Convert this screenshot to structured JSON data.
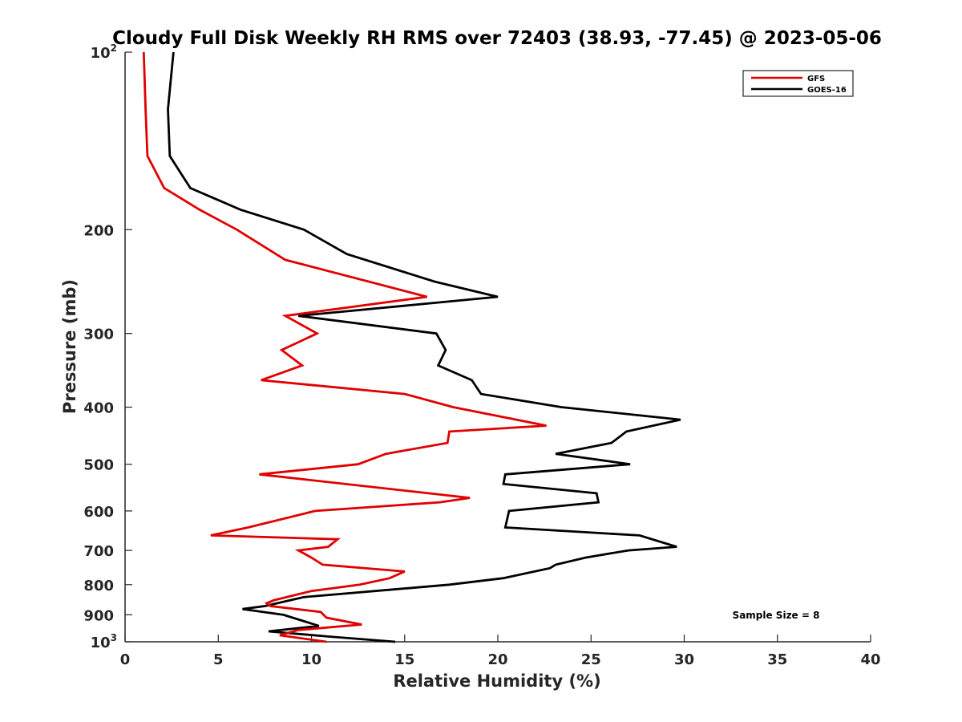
{
  "chart_data": {
    "type": "line",
    "title": "Cloudy Full Disk Weekly RH RMS over 72403 (38.93, -77.45) @ 2023-05-06",
    "xlabel": "Relative Humidity (%)",
    "ylabel": "Pressure (mb)",
    "xlim": [
      0,
      40
    ],
    "ylim": [
      100,
      1000
    ],
    "yscale": "log",
    "yreversed": true,
    "xticks": [
      0,
      5,
      10,
      15,
      20,
      25,
      30,
      35,
      40
    ],
    "yticks": [
      {
        "value": 100,
        "base": "10",
        "exp": "2"
      },
      {
        "value": 200,
        "label": "200"
      },
      {
        "value": 300,
        "label": "300"
      },
      {
        "value": 400,
        "label": "400"
      },
      {
        "value": 500,
        "label": "500"
      },
      {
        "value": 600,
        "label": "600"
      },
      {
        "value": 700,
        "label": "700"
      },
      {
        "value": 800,
        "label": "800"
      },
      {
        "value": 900,
        "label": "900"
      },
      {
        "value": 1000,
        "base": "10",
        "exp": "3"
      }
    ],
    "grid": false,
    "legend_position": "top-right",
    "annotation": "Sample Size = 8",
    "series": [
      {
        "name": "GFS",
        "color": "#e00000",
        "points": [
          [
            1.0,
            100
          ],
          [
            1.1,
            125
          ],
          [
            1.2,
            150
          ],
          [
            2.1,
            170
          ],
          [
            4.0,
            185
          ],
          [
            6.0,
            200
          ],
          [
            8.6,
            225
          ],
          [
            16.2,
            260
          ],
          [
            8.6,
            280
          ],
          [
            10.3,
            300
          ],
          [
            8.4,
            320
          ],
          [
            9.5,
            340
          ],
          [
            7.3,
            360
          ],
          [
            15.0,
            380
          ],
          [
            17.6,
            400
          ],
          [
            22.6,
            430
          ],
          [
            17.4,
            440
          ],
          [
            17.3,
            460
          ],
          [
            14.0,
            480
          ],
          [
            12.5,
            500
          ],
          [
            7.2,
            520
          ],
          [
            18.5,
            570
          ],
          [
            16.9,
            580
          ],
          [
            10.2,
            600
          ],
          [
            6.6,
            640
          ],
          [
            4.6,
            660
          ],
          [
            11.4,
            670
          ],
          [
            10.9,
            690
          ],
          [
            9.3,
            700
          ],
          [
            10.0,
            720
          ],
          [
            10.6,
            740
          ],
          [
            15.0,
            760
          ],
          [
            14.2,
            780
          ],
          [
            12.6,
            800
          ],
          [
            10.0,
            820
          ],
          [
            8.0,
            850
          ],
          [
            7.6,
            860
          ],
          [
            7.8,
            870
          ],
          [
            10.5,
            890
          ],
          [
            10.8,
            910
          ],
          [
            12.7,
            935
          ],
          [
            9.3,
            955
          ],
          [
            8.3,
            975
          ],
          [
            10.8,
            1000
          ]
        ]
      },
      {
        "name": "GOES-16",
        "color": "#000000",
        "points": [
          [
            2.6,
            100
          ],
          [
            2.3,
            125
          ],
          [
            2.4,
            150
          ],
          [
            3.5,
            170
          ],
          [
            6.2,
            185
          ],
          [
            9.6,
            200
          ],
          [
            11.9,
            220
          ],
          [
            16.6,
            245
          ],
          [
            20.0,
            260
          ],
          [
            9.3,
            280
          ],
          [
            16.7,
            300
          ],
          [
            17.2,
            320
          ],
          [
            16.8,
            340
          ],
          [
            18.6,
            360
          ],
          [
            19.1,
            380
          ],
          [
            23.4,
            400
          ],
          [
            29.8,
            420
          ],
          [
            26.9,
            440
          ],
          [
            26.1,
            460
          ],
          [
            23.1,
            480
          ],
          [
            27.1,
            500
          ],
          [
            20.4,
            520
          ],
          [
            20.3,
            540
          ],
          [
            25.3,
            560
          ],
          [
            25.4,
            580
          ],
          [
            20.6,
            600
          ],
          [
            20.4,
            640
          ],
          [
            27.6,
            660
          ],
          [
            29.6,
            690
          ],
          [
            27.0,
            700
          ],
          [
            24.7,
            720
          ],
          [
            23.1,
            740
          ],
          [
            22.8,
            750
          ],
          [
            20.3,
            780
          ],
          [
            17.4,
            800
          ],
          [
            9.6,
            840
          ],
          [
            7.5,
            870
          ],
          [
            6.3,
            880
          ],
          [
            8.5,
            900
          ],
          [
            10.4,
            940
          ],
          [
            7.7,
            960
          ],
          [
            11.0,
            980
          ],
          [
            14.5,
            1000
          ]
        ]
      }
    ]
  }
}
